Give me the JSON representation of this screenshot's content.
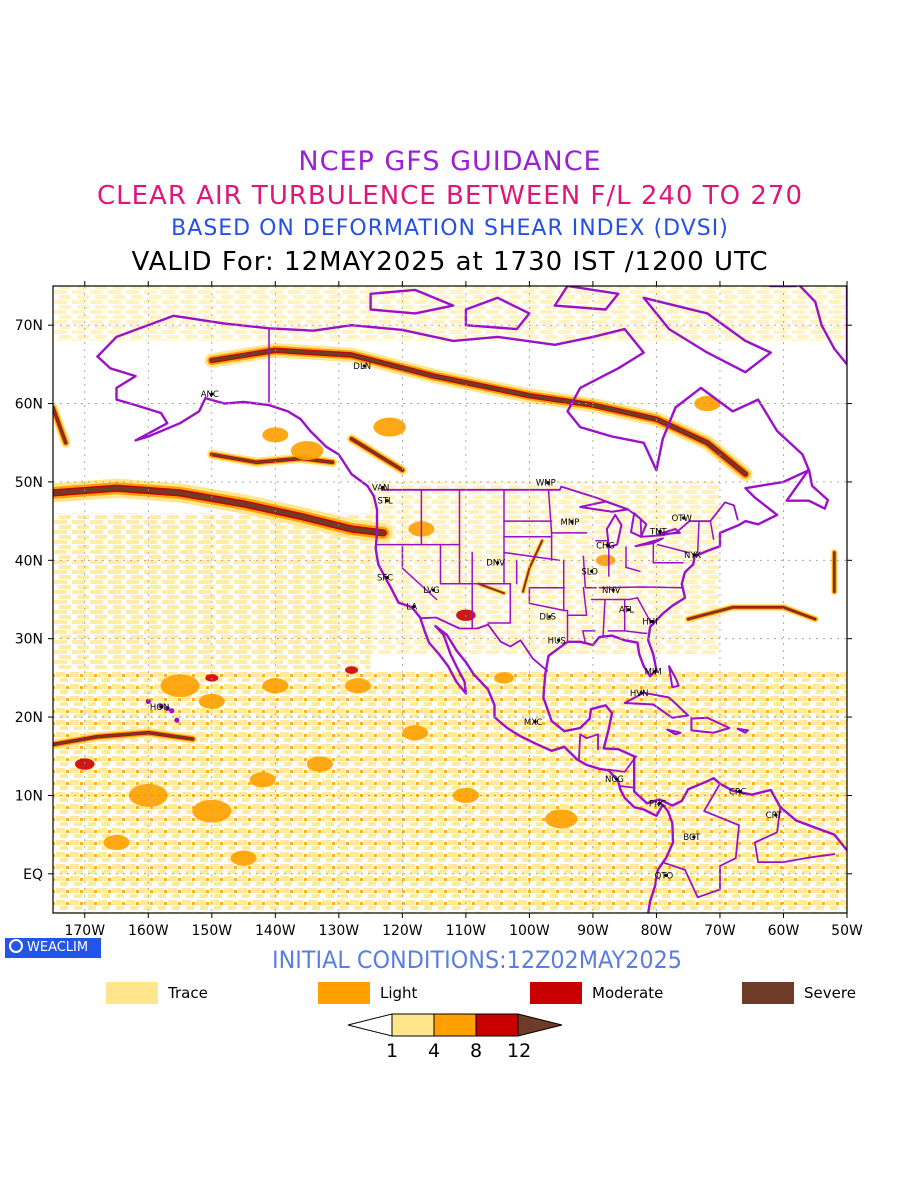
{
  "titles": {
    "line1": "NCEP GFS GUIDANCE",
    "line2": "CLEAR AIR TURBULENCE BETWEEN F/L 240 TO 270",
    "line3": "BASED ON DEFORMATION SHEAR INDEX (DVSI)",
    "line4": "VALID For: 12MAY2025 at 1730 IST /1200 UTC"
  },
  "lat_labels": [
    "70N",
    "60N",
    "50N",
    "40N",
    "30N",
    "20N",
    "10N",
    "EQ"
  ],
  "lon_labels": [
    "170W",
    "160W",
    "150W",
    "140W",
    "130W",
    "120W",
    "110W",
    "100W",
    "90W",
    "80W",
    "70W",
    "60W",
    "50W"
  ],
  "stations": [
    {
      "id": "ANC",
      "lon": -150.0,
      "lat": 61.2
    },
    {
      "id": "DLN",
      "lon": -126.0,
      "lat": 64.8
    },
    {
      "id": "VAN",
      "lon": -123.1,
      "lat": 49.3
    },
    {
      "id": "STL",
      "lon": -122.4,
      "lat": 47.6
    },
    {
      "id": "WNP",
      "lon": -97.1,
      "lat": 49.9
    },
    {
      "id": "MNP",
      "lon": -93.3,
      "lat": 44.9
    },
    {
      "id": "TNT",
      "lon": -79.4,
      "lat": 43.7
    },
    {
      "id": "OTW",
      "lon": -75.7,
      "lat": 45.4
    },
    {
      "id": "CHG",
      "lon": -87.7,
      "lat": 41.9
    },
    {
      "id": "NYK",
      "lon": -74.0,
      "lat": 40.7
    },
    {
      "id": "DNV",
      "lon": -105.0,
      "lat": 39.7
    },
    {
      "id": "SFC",
      "lon": -122.4,
      "lat": 37.8
    },
    {
      "id": "SLO",
      "lon": -90.2,
      "lat": 38.6
    },
    {
      "id": "LVG",
      "lon": -115.1,
      "lat": 36.2
    },
    {
      "id": "NHV",
      "lon": -86.8,
      "lat": 36.2
    },
    {
      "id": "LA",
      "lon": -118.2,
      "lat": 34.1
    },
    {
      "id": "ATL",
      "lon": -84.4,
      "lat": 33.7
    },
    {
      "id": "DLS",
      "lon": -96.8,
      "lat": 32.8
    },
    {
      "id": "HHI",
      "lon": -80.7,
      "lat": 32.2
    },
    {
      "id": "HUS",
      "lon": -95.4,
      "lat": 29.8
    },
    {
      "id": "MIM",
      "lon": -80.2,
      "lat": 25.8
    },
    {
      "id": "HVN",
      "lon": -82.4,
      "lat": 23.1
    },
    {
      "id": "HON",
      "lon": -157.9,
      "lat": 21.3
    },
    {
      "id": "MXC",
      "lon": -99.1,
      "lat": 19.4
    },
    {
      "id": "NCG",
      "lon": -86.3,
      "lat": 12.1
    },
    {
      "id": "CRC",
      "lon": -66.9,
      "lat": 10.5
    },
    {
      "id": "PNC",
      "lon": -79.5,
      "lat": 9.0
    },
    {
      "id": "CRT",
      "lon": -61.2,
      "lat": 7.5
    },
    {
      "id": "BGT",
      "lon": -74.1,
      "lat": 4.7
    },
    {
      "id": "QTO",
      "lon": -78.5,
      "lat": -0.2
    }
  ],
  "initial_conditions": "INITIAL CONDITIONS:12Z02MAY2025",
  "brand": "WEACLIM",
  "legend": [
    {
      "label": "Trace",
      "color": "#ffe68c"
    },
    {
      "label": "Light",
      "color": "#ffa000"
    },
    {
      "label": "Moderate",
      "color": "#c80000"
    },
    {
      "label": "Severe",
      "color": "#6e3c28"
    }
  ],
  "colorbar_labels": [
    "1",
    "4",
    "8",
    "12"
  ],
  "colors": {
    "trace": "#ffe68c",
    "light": "#ffa000",
    "moderate": "#c80000",
    "severe": "#6e3c28",
    "coast": "#9b10c8"
  }
}
